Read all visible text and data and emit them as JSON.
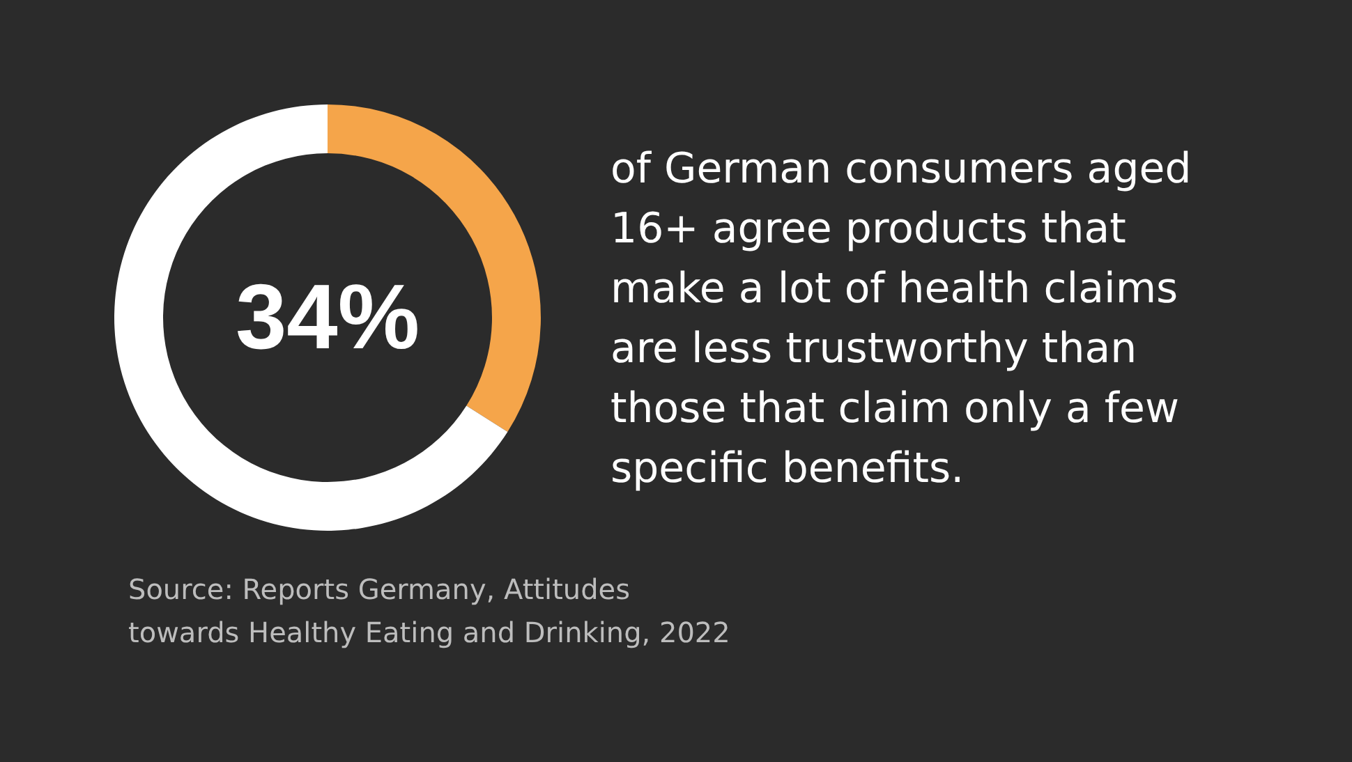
{
  "chart_data": {
    "type": "donut",
    "categories": [
      null,
      null
    ],
    "values": [
      34,
      66
    ],
    "colors": [
      "#f5a54a",
      "#ffffff"
    ],
    "value_labels": [
      "34%",
      null
    ],
    "annotations": [
      "of German consumers aged\n16+ agree products that\nmake a lot of health claims\nare less trustworthy than\nthose that claim only a few\nspecific benefits.",
      "Source: Reports Germany, Attitudes\ntowards Healthy Eating and Drinking, 2022"
    ]
  }
}
